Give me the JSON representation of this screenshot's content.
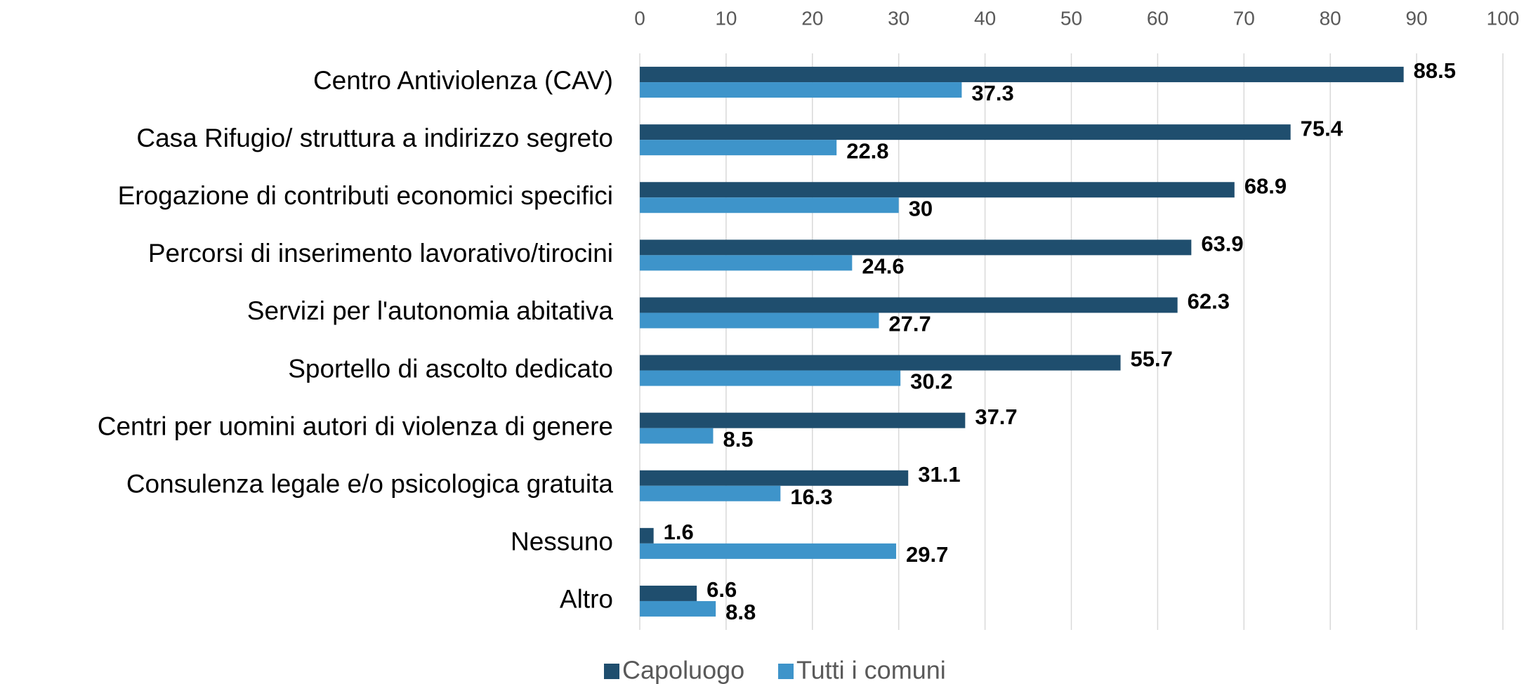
{
  "chart_data": {
    "type": "hbar",
    "categories": [
      "Centro Antiviolenza (CAV)",
      "Casa Rifugio/ struttura a indirizzo segreto",
      "Erogazione di contributi economici specifici",
      "Percorsi di inserimento lavorativo/tirocini",
      "Servizi per l'autonomia abitativa",
      "Sportello di ascolto dedicato",
      "Centri per uomini autori di violenza di genere",
      "Consulenza legale e/o psicologica gratuita",
      "Nessuno",
      "Altro"
    ],
    "series": [
      {
        "name": "Capoluogo",
        "color": "#1f4e6e",
        "values": [
          88.5,
          75.4,
          68.9,
          63.9,
          62.3,
          55.7,
          37.7,
          31.1,
          1.6,
          6.6
        ]
      },
      {
        "name": "Tutti i comuni",
        "color": "#3e94ca",
        "values": [
          37.3,
          22.8,
          30,
          24.6,
          27.7,
          30.2,
          8.5,
          16.3,
          29.7,
          8.8
        ]
      }
    ],
    "xlim": [
      0,
      100
    ],
    "xticks": [
      0,
      10,
      20,
      30,
      40,
      50,
      60,
      70,
      80,
      90,
      100
    ],
    "grid": true,
    "legend": "bottom"
  }
}
